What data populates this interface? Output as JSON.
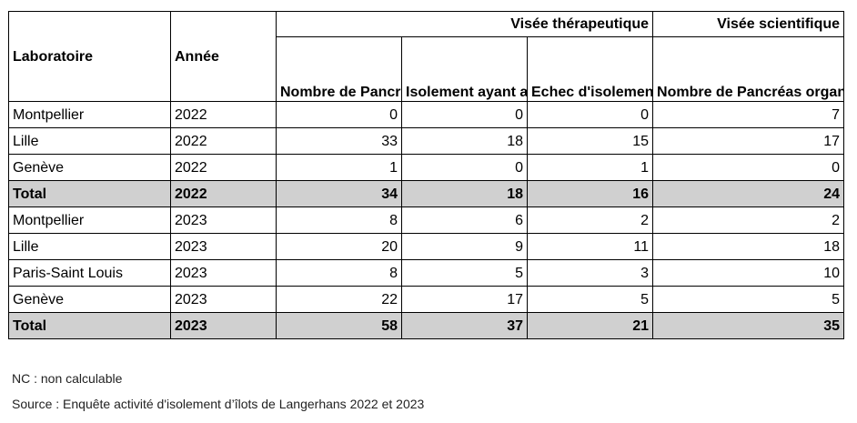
{
  "table": {
    "header": {
      "group_therapeutic": "Visée thérapeutique",
      "group_scientific": "Visée scientifique",
      "col_lab": "Laboratoire",
      "col_year": "Année",
      "col_ther_pancreas": "Nombre de Pancréas organe reçus",
      "col_ther_graft": "Isolement ayant abouti à une greffe",
      "col_ther_fail": "Echec d'isolement",
      "col_sci_pancreas": "Nombre de Pancréas organe reçus"
    },
    "rows": [
      {
        "lab": "Montpellier",
        "year": "2022",
        "ther_pancreas": "0",
        "ther_graft": "0",
        "ther_fail": "0",
        "sci_pancreas": "7"
      },
      {
        "lab": "Lille",
        "year": "2022",
        "ther_pancreas": "33",
        "ther_graft": "18",
        "ther_fail": "15",
        "sci_pancreas": "17"
      },
      {
        "lab": "Genève",
        "year": "2022",
        "ther_pancreas": "1",
        "ther_graft": "0",
        "ther_fail": "1",
        "sci_pancreas": "0"
      },
      {
        "lab": "Total",
        "year": "2022",
        "ther_pancreas": "34",
        "ther_graft": "18",
        "ther_fail": "16",
        "sci_pancreas": "24"
      },
      {
        "lab": "Montpellier",
        "year": "2023",
        "ther_pancreas": "8",
        "ther_graft": "6",
        "ther_fail": "2",
        "sci_pancreas": "2"
      },
      {
        "lab": "Lille",
        "year": "2023",
        "ther_pancreas": "20",
        "ther_graft": "9",
        "ther_fail": "11",
        "sci_pancreas": "18"
      },
      {
        "lab": "Paris-Saint Louis",
        "year": "2023",
        "ther_pancreas": "8",
        "ther_graft": "5",
        "ther_fail": "3",
        "sci_pancreas": "10"
      },
      {
        "lab": "Genève",
        "year": "2023",
        "ther_pancreas": "22",
        "ther_graft": "17",
        "ther_fail": "5",
        "sci_pancreas": "5"
      },
      {
        "lab": "Total",
        "year": "2023",
        "ther_pancreas": "58",
        "ther_graft": "37",
        "ther_fail": "21",
        "sci_pancreas": "35"
      }
    ]
  },
  "notes": {
    "nc": "NC : non calculable",
    "source": "Source : Enquête activité d'isolement d’îlots de Langerhans 2022 et 2023"
  },
  "colors": {
    "total_row_background": "#d0d0d0",
    "border": "#000000"
  }
}
